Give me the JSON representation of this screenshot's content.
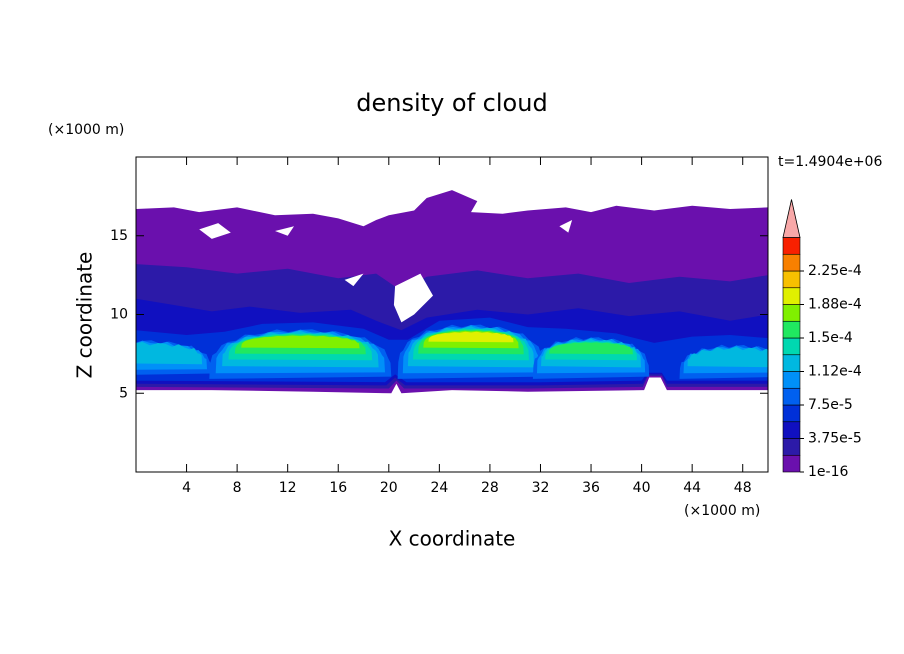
{
  "chart_data": {
    "type": "contour",
    "title": "density of cloud",
    "x_label": "X coordinate",
    "y_label": "Z coordinate",
    "x_unit": "(×1000 m)",
    "y_unit": "(×1000 m)",
    "time_label": "t=1.4904e+06",
    "xlim": [
      0,
      50
    ],
    "ylim": [
      0,
      20
    ],
    "xticks": [
      4,
      8,
      12,
      16,
      20,
      24,
      28,
      32,
      36,
      40,
      44,
      48
    ],
    "yticks": [
      5,
      10,
      15
    ],
    "levels": [
      1e-16,
      1.875e-05,
      3.75e-05,
      5.625e-05,
      7.5e-05,
      9.375e-05,
      0.0001125,
      0.00013125,
      0.00015,
      0.00016875,
      0.0001875,
      0.00020625,
      0.000225,
      0.00024375,
      0.0002625
    ],
    "colors": [
      "#6a10ad",
      "#2c1aa8",
      "#1010c0",
      "#0030d8",
      "#0060f0",
      "#0090f8",
      "#00b8e0",
      "#00d8b0",
      "#20e860",
      "#80f000",
      "#e0f000",
      "#f8c000",
      "#f88000",
      "#f82000"
    ],
    "over_color": "#f8a8a8",
    "colorbar_ticks": [
      1e-16,
      {
        "value": 3.75e-05,
        "label": "3.75e-5"
      },
      {
        "value": 7.5e-05,
        "label": "7.5e-5"
      },
      {
        "value": 0.0001125,
        "label": "1.12e-4"
      },
      {
        "value": 0.00015,
        "label": "1.5e-4"
      },
      {
        "value": 0.0001875,
        "label": "1.88e-4"
      },
      {
        "value": 0.000225,
        "label": "2.25e-4"
      }
    ]
  }
}
